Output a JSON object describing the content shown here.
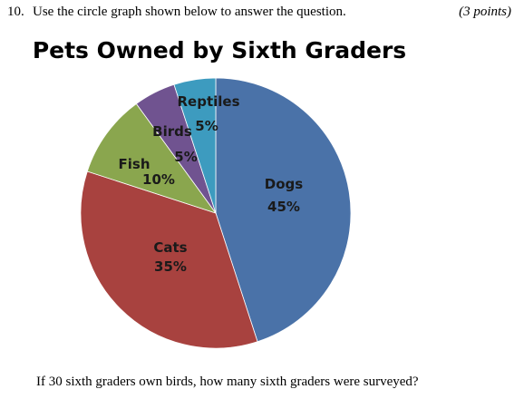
{
  "question": {
    "number": "10.",
    "text": "Use the circle graph shown below to answer the question.",
    "points": "(3 points)",
    "followup": "If 30 sixth graders own birds, how many sixth graders were surveyed?"
  },
  "chart_data": {
    "type": "pie",
    "title": "Pets Owned by Sixth Graders",
    "start": "12 o'clock, clockwise",
    "slices": [
      {
        "name": "Dogs",
        "value": 45,
        "label": "45%",
        "color": "#4a72a8"
      },
      {
        "name": "Cats",
        "value": 35,
        "label": "35%",
        "color": "#a8423f"
      },
      {
        "name": "Fish",
        "value": 10,
        "label": "10%",
        "color": "#8aa64e"
      },
      {
        "name": "Birds",
        "value": 5,
        "label": "5%",
        "color": "#705390"
      },
      {
        "name": "Reptiles",
        "value": 5,
        "label": "5%",
        "color": "#3d9bbf"
      }
    ],
    "legend": "none"
  }
}
